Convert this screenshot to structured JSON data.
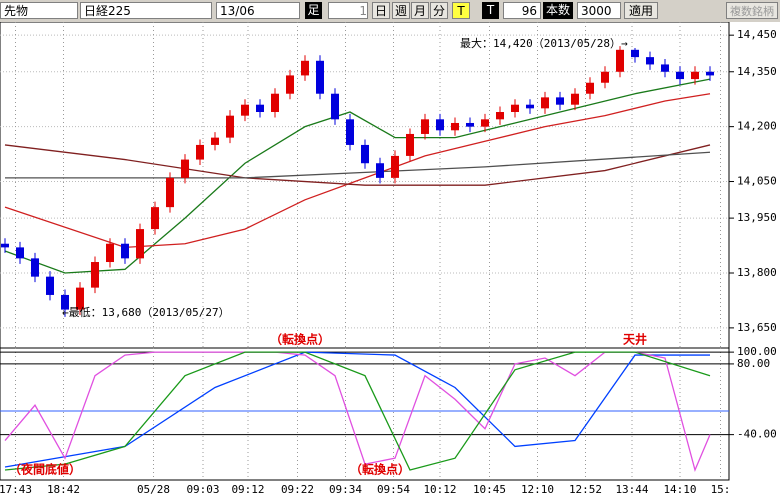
{
  "toolbar": {
    "market": "先物",
    "symbol": "日経225",
    "contract": "13/06",
    "period_label": "足",
    "period_value": 1,
    "buttons": [
      "日",
      "週",
      "月",
      "分",
      "T"
    ],
    "t_label": "T",
    "count": 96,
    "count_label": "本数",
    "bars": 3000,
    "apply": "適用",
    "multi": "複数銘柄"
  },
  "chart_data": [
    {
      "type": "candlestick",
      "colors": {
        "up": "#e00000",
        "down": "#0000dd"
      },
      "xlim": [
        0,
        47
      ],
      "ylim": [
        13595,
        14486
      ],
      "yticks": [
        {
          "value": 13650,
          "label": "13,650"
        },
        {
          "value": 13800,
          "label": "13,800"
        },
        {
          "value": 13950,
          "label": "13,950"
        },
        {
          "value": 14050,
          "label": "14,050"
        },
        {
          "value": 14200,
          "label": "14,200"
        },
        {
          "value": 14350,
          "label": "14,350"
        },
        {
          "value": 14450,
          "label": "14,450"
        }
      ],
      "xticks": [
        {
          "value": 0.7,
          "label": "17:43"
        },
        {
          "value": 3.9,
          "label": "18:42"
        },
        {
          "value": 9.9,
          "label": "05/28"
        },
        {
          "value": 13.2,
          "label": "09:03"
        },
        {
          "value": 16.2,
          "label": "09:12"
        },
        {
          "value": 19.5,
          "label": "09:22"
        },
        {
          "value": 22.7,
          "label": "09:34"
        },
        {
          "value": 25.9,
          "label": "09:54"
        },
        {
          "value": 29,
          "label": "10:12"
        },
        {
          "value": 32.3,
          "label": "10:45"
        },
        {
          "value": 35.5,
          "label": "12:10"
        },
        {
          "value": 38.7,
          "label": "12:52"
        },
        {
          "value": 41.8,
          "label": "13:44"
        },
        {
          "value": 45,
          "label": "14:10"
        },
        {
          "value": 47.7,
          "label": "15:"
        }
      ],
      "open": [
        13880,
        13870,
        13840,
        13790,
        13740,
        13700,
        13760,
        13830,
        13880,
        13840,
        13920,
        13980,
        14060,
        14110,
        14150,
        14170,
        14230,
        14260,
        14240,
        14290,
        14340,
        14380,
        14290,
        14220,
        14150,
        14100,
        14060,
        14120,
        14180,
        14220,
        14190,
        14210,
        14200,
        14220,
        14240,
        14260,
        14250,
        14280,
        14260,
        14290,
        14320,
        14350,
        14410,
        14390,
        14370,
        14350,
        14330,
        14350
      ],
      "high": [
        13895,
        13885,
        13855,
        13805,
        13755,
        13775,
        13845,
        13895,
        13895,
        13935,
        13995,
        14075,
        14125,
        14165,
        14185,
        14245,
        14275,
        14275,
        14305,
        14355,
        14395,
        14395,
        14305,
        14235,
        14165,
        14115,
        14135,
        14195,
        14235,
        14235,
        14225,
        14225,
        14235,
        14255,
        14275,
        14275,
        14295,
        14295,
        14305,
        14335,
        14365,
        14420,
        14415,
        14405,
        14385,
        14365,
        14365,
        14365
      ],
      "low": [
        13855,
        13825,
        13775,
        13725,
        13680,
        13685,
        13745,
        13815,
        13825,
        13825,
        13905,
        13965,
        14045,
        14095,
        14135,
        14155,
        14215,
        14225,
        14225,
        14275,
        14325,
        14275,
        14205,
        14135,
        14085,
        14045,
        14045,
        14105,
        14165,
        14175,
        14175,
        14185,
        14185,
        14205,
        14225,
        14235,
        14235,
        14245,
        14245,
        14275,
        14305,
        14335,
        14375,
        14355,
        14335,
        14315,
        14315,
        14325
      ],
      "close": [
        13870,
        13840,
        13790,
        13740,
        13700,
        13760,
        13830,
        13880,
        13840,
        13920,
        13980,
        14060,
        14110,
        14150,
        14170,
        14230,
        14260,
        14240,
        14290,
        14340,
        14380,
        14290,
        14220,
        14150,
        14100,
        14060,
        14120,
        14180,
        14220,
        14190,
        14210,
        14200,
        14220,
        14240,
        14260,
        14250,
        14280,
        14260,
        14290,
        14320,
        14350,
        14410,
        14390,
        14370,
        14350,
        14330,
        14350,
        14340
      ],
      "series": [
        {
          "color": "#1a7a1a",
          "x": [
            0,
            4,
            8,
            12,
            16,
            20,
            23,
            26,
            30,
            34,
            38,
            42,
            47
          ],
          "values": [
            13860,
            13800,
            13810,
            13950,
            14100,
            14200,
            14240,
            14170,
            14170,
            14210,
            14250,
            14290,
            14330
          ]
        },
        {
          "color": "#d02020",
          "x": [
            0,
            8,
            12,
            16,
            20,
            24,
            28,
            32,
            36,
            40,
            44,
            47
          ],
          "values": [
            13980,
            13870,
            13880,
            13920,
            14000,
            14060,
            14120,
            14160,
            14200,
            14230,
            14270,
            14290
          ]
        },
        {
          "color": "#802020",
          "x": [
            0,
            8,
            16,
            24,
            32,
            40,
            47
          ],
          "values": [
            14150,
            14110,
            14060,
            14040,
            14040,
            14080,
            14150
          ]
        },
        {
          "color": "#505050",
          "x": [
            0,
            16,
            32,
            47
          ],
          "values": [
            14060,
            14060,
            14090,
            14130
          ]
        }
      ],
      "annotations": [
        "最大：14,420（2013/05/28）→",
        "←最低：13,680（2013/05/27）"
      ]
    },
    {
      "type": "line",
      "xlim": [
        0,
        47
      ],
      "ylim": [
        -117,
        107
      ],
      "yticks": [
        {
          "value": 100,
          "label": "100.00"
        },
        {
          "value": 80,
          "label": "80.00"
        },
        {
          "value": -40,
          "label": "-40.00"
        }
      ],
      "hlines": [
        0
      ],
      "series": [
        {
          "color": "#0040ff",
          "x": [
            0,
            8,
            14,
            20,
            26,
            30,
            34,
            38,
            42,
            47
          ],
          "values": [
            -95,
            -60,
            40,
            100,
            95,
            40,
            -60,
            -50,
            95,
            95
          ]
        },
        {
          "color": "#e050e0",
          "x": [
            0,
            2,
            4,
            6,
            8,
            10,
            14,
            18,
            20,
            22,
            24,
            26,
            28,
            30,
            32,
            34,
            36,
            38,
            40,
            42,
            44,
            46,
            47
          ],
          "values": [
            -50,
            10,
            -80,
            60,
            95,
            100,
            100,
            100,
            95,
            60,
            -90,
            -80,
            60,
            20,
            -30,
            80,
            90,
            60,
            100,
            100,
            90,
            -100,
            -40
          ]
        },
        {
          "color": "#1a9a1a",
          "x": [
            0,
            4,
            8,
            12,
            16,
            20,
            24,
            27,
            30,
            34,
            38,
            42,
            47
          ],
          "values": [
            -100,
            -90,
            -60,
            60,
            100,
            100,
            60,
            -100,
            -80,
            70,
            100,
            100,
            60
          ]
        }
      ],
      "annotations": [
        "（転換点）",
        "天井",
        "（夜間底値）",
        "（転換点）"
      ]
    }
  ]
}
